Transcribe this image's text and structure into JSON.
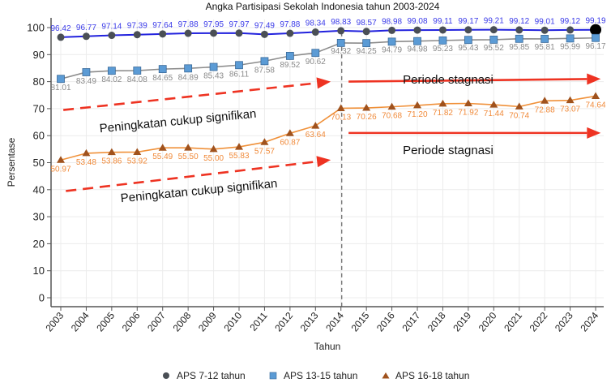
{
  "chart_data": {
    "type": "line",
    "title": "Angka Partisipasi Sekolah Indonesia tahun 2003-2024",
    "xlabel": "Tahun",
    "ylabel": "Persentase",
    "ylim": [
      0,
      100
    ],
    "yticks": [
      0,
      10,
      20,
      30,
      40,
      50,
      60,
      70,
      80,
      90,
      100
    ],
    "grid": true,
    "legend_position": "bottom",
    "x": [
      "2003",
      "2004",
      "2005",
      "2006",
      "2007",
      "2008",
      "2009",
      "2010",
      "2011",
      "2012",
      "2013",
      "2014",
      "2015",
      "2016",
      "2017",
      "2018",
      "2019",
      "2020",
      "2021",
      "2022",
      "2023",
      "2024"
    ],
    "series": [
      {
        "name": "APS 7-12 tahun",
        "marker": "circle",
        "line_color": "#2222dd",
        "marker_color": "#4a4f55",
        "label_color": "#3a3ae8",
        "values": [
          96.42,
          96.77,
          97.14,
          97.39,
          97.64,
          97.88,
          97.95,
          97.97,
          97.49,
          97.88,
          98.34,
          98.83,
          98.57,
          98.98,
          99.08,
          99.11,
          99.17,
          99.21,
          99.12,
          99.01,
          99.12,
          99.19
        ],
        "labels": [
          "96.42",
          "96.77",
          "97.14",
          "97.39",
          "97.64",
          "97.88",
          "97.95",
          "97.97",
          "97.49",
          "97.88",
          "98.34",
          "98.83",
          "98.57",
          "98.98",
          "99.08",
          "99.11",
          "99.17",
          "99.21",
          "99.12",
          "99.01",
          "99.12",
          "99.19"
        ]
      },
      {
        "name": "APS 13-15 tahun",
        "marker": "square",
        "line_color": "#8c8c8c",
        "marker_color": "#5b9bd5",
        "label_color": "#8a8a8a",
        "values": [
          81.01,
          83.49,
          84.02,
          84.08,
          84.65,
          84.89,
          85.43,
          86.11,
          87.58,
          89.52,
          90.62,
          94.32,
          94.25,
          94.79,
          94.98,
          95.23,
          95.43,
          95.52,
          95.85,
          95.81,
          95.99,
          96.17
        ],
        "labels": [
          "81.01",
          "83.49",
          "84.02",
          "84.08",
          "84.65",
          "84.89",
          "85.43",
          "86.11",
          "87.58",
          "89.52",
          "90.62",
          "94.32",
          "94.25",
          "94.79",
          "94.98",
          "95.23",
          "95.43",
          "95.52",
          "95.85",
          "95.81",
          "95.99",
          "96.17"
        ]
      },
      {
        "name": "APS 16-18 tahun",
        "marker": "triangle",
        "line_color": "#f0913a",
        "marker_color": "#a0521d",
        "label_color": "#f08a3a",
        "values": [
          50.97,
          53.48,
          53.86,
          53.92,
          55.49,
          55.5,
          55.0,
          55.83,
          57.57,
          60.87,
          63.64,
          70.13,
          70.26,
          70.68,
          71.2,
          71.82,
          71.92,
          71.44,
          70.74,
          72.88,
          73.07,
          74.64
        ],
        "labels": [
          "50.97",
          "53.48",
          "53.86",
          "53.92",
          "55.49",
          "55.50",
          "55.00",
          "55.83",
          "57.57",
          "60.87",
          "63.64",
          "70.13",
          "70.26",
          "70.68",
          "71.20",
          "71.82",
          "71.92",
          "71.44",
          "70.74",
          "72.88",
          "73.07",
          "74.64"
        ]
      }
    ],
    "divider_year": "2014",
    "annotations": [
      {
        "text": "Peningkatan cukup signifikan",
        "kind": "dashed-arrow",
        "color": "#ee3322",
        "from": [
          "2003.1",
          69.5
        ],
        "to": [
          "2013.6",
          80.0
        ]
      },
      {
        "text": "Periode stagnasi",
        "kind": "solid-arrow",
        "color": "#ee3322",
        "from": [
          "2014.3",
          80.0
        ],
        "to": [
          "2024.2",
          81.0
        ]
      },
      {
        "text": "Peningkatan cukup signifikan",
        "kind": "dashed-arrow",
        "color": "#ee3322",
        "from": [
          "2003.2",
          39.5
        ],
        "to": [
          "2013.6",
          51.0
        ]
      },
      {
        "text": "Periode stagnasi",
        "kind": "solid-arrow",
        "color": "#ee3322",
        "from": [
          "2014.3",
          61.0
        ],
        "to": [
          "2024.2",
          61.0
        ]
      }
    ]
  }
}
